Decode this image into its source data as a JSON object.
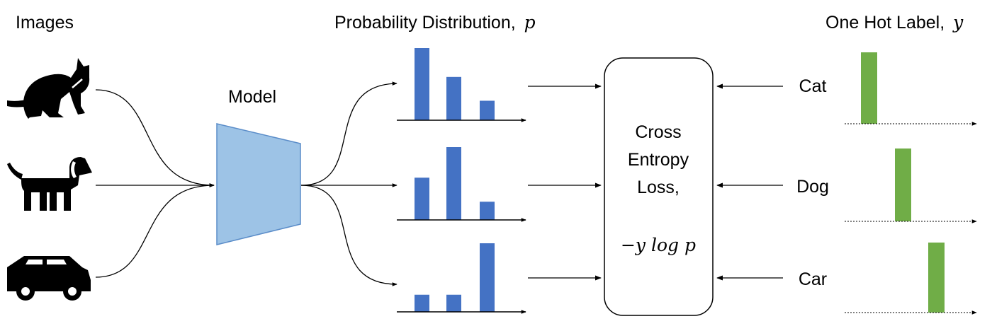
{
  "headers": {
    "images": "Images",
    "prob_dist": "Probability Distribution,",
    "prob_var": "p",
    "one_hot": "One Hot Label,",
    "one_hot_var": "y"
  },
  "model_label": "Model",
  "loss_box": {
    "line1": "Cross",
    "line2": "Entropy",
    "line3": "Loss,",
    "formula": "−y log p"
  },
  "image_icons": [
    "cat-icon",
    "dog-icon",
    "car-icon"
  ],
  "classes": [
    "Cat",
    "Dog",
    "Car"
  ],
  "colors": {
    "prob_bar": "#4472C4",
    "onehot_bar": "#70AD47",
    "model_fill": "#9DC3E6",
    "model_stroke": "#5B8DC9"
  },
  "chart_data": [
    {
      "type": "bar",
      "series": [
        {
          "values": [
            1.0,
            0.6,
            0.27
          ]
        }
      ]
    },
    {
      "type": "bar",
      "series": [
        {
          "values": [
            0.58,
            1.0,
            0.25
          ]
        }
      ]
    },
    {
      "type": "bar",
      "series": [
        {
          "values": [
            0.25,
            0.25,
            1.0
          ]
        }
      ]
    },
    {
      "type": "bar",
      "series": [
        {
          "values": [
            1,
            0,
            0
          ]
        }
      ]
    },
    {
      "type": "bar",
      "series": [
        {
          "values": [
            0,
            1,
            0
          ]
        }
      ]
    },
    {
      "type": "bar",
      "series": [
        {
          "values": [
            0,
            0,
            1
          ]
        }
      ]
    }
  ]
}
